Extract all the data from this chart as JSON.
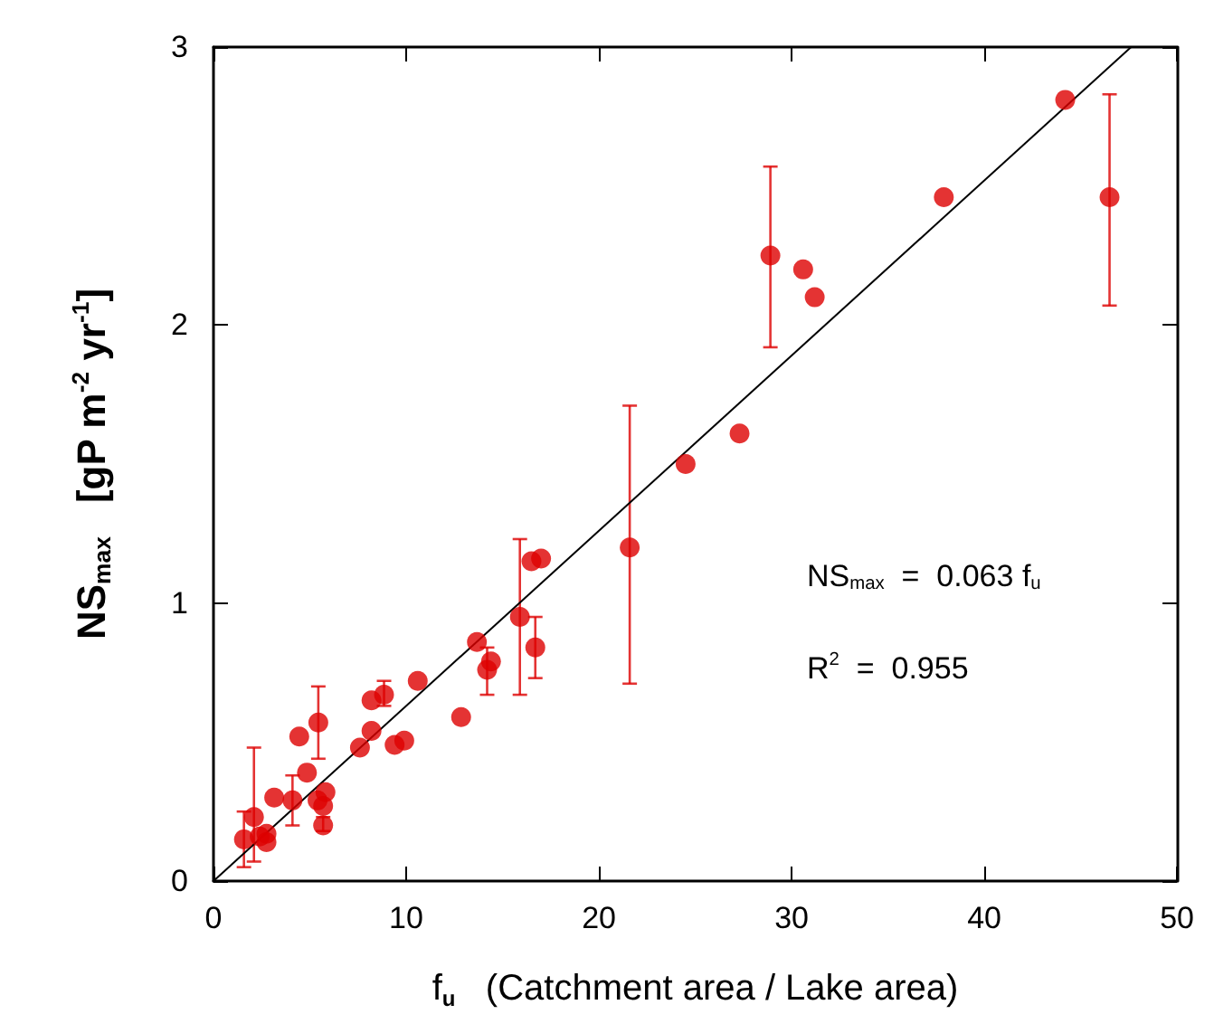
{
  "chart_data": {
    "type": "scatter",
    "xlabel": "f$_{u}$   (Catchment area / Lake area)",
    "ylabel": "NS$_{max}$   [gP m$^{-2}$ yr$^{-1}$]",
    "annotations": [
      "NS$_{max}$  =  0.063 f$_{u}$",
      "R$^{2}$  =  0.955"
    ],
    "xlim": [
      0,
      50
    ],
    "xticks": [
      0,
      10,
      20,
      30,
      40,
      50
    ],
    "ylim": [
      0,
      3
    ],
    "yticks": [
      0,
      1,
      2,
      3
    ],
    "grid": false,
    "marker": "circle",
    "series": [
      {
        "color": "#dd0000",
        "x": [
          1.58,
          2.1,
          2.4,
          2.75,
          2.75,
          3.15,
          4.1,
          4.45,
          4.85,
          5.44,
          5.4,
          5.69,
          5.81,
          5.69,
          7.6,
          8.2,
          8.2,
          8.85,
          9.4,
          9.9,
          10.6,
          12.85,
          13.67,
          14.2,
          14.4,
          15.9,
          16.7,
          16.5,
          17.0,
          21.6,
          24.5,
          27.3,
          28.9,
          30.6,
          31.2,
          37.9,
          44.2,
          46.5
        ],
        "values": [
          0.15,
          0.23,
          0.16,
          0.17,
          0.14,
          0.3,
          0.29,
          0.52,
          0.39,
          0.57,
          0.29,
          0.27,
          0.32,
          0.2,
          0.48,
          0.54,
          0.65,
          0.67,
          0.49,
          0.505,
          0.72,
          0.59,
          0.86,
          0.76,
          0.79,
          0.95,
          0.84,
          1.15,
          1.16,
          1.2,
          1.5,
          1.61,
          2.25,
          2.2,
          2.1,
          2.46,
          2.81,
          2.46
        ],
        "errors": [
          [
            0.05,
            0.25
          ],
          [
            0.07,
            0.48
          ],
          null,
          null,
          null,
          null,
          [
            0.2,
            0.38
          ],
          null,
          null,
          [
            0.44,
            0.7
          ],
          null,
          null,
          null,
          [
            0.18,
            0.23
          ],
          null,
          null,
          null,
          [
            0.63,
            0.72
          ],
          null,
          null,
          null,
          null,
          null,
          [
            0.67,
            0.84
          ],
          null,
          [
            0.67,
            1.23
          ],
          [
            0.73,
            0.95
          ],
          null,
          null,
          [
            0.71,
            1.71
          ],
          null,
          null,
          [
            1.92,
            2.57
          ],
          null,
          null,
          null,
          null,
          [
            2.07,
            2.83
          ]
        ]
      },
      {
        "type": "line",
        "color": "#000000",
        "marker": "none",
        "x": [
          0,
          47.62
        ],
        "values": [
          0,
          3
        ]
      }
    ]
  }
}
